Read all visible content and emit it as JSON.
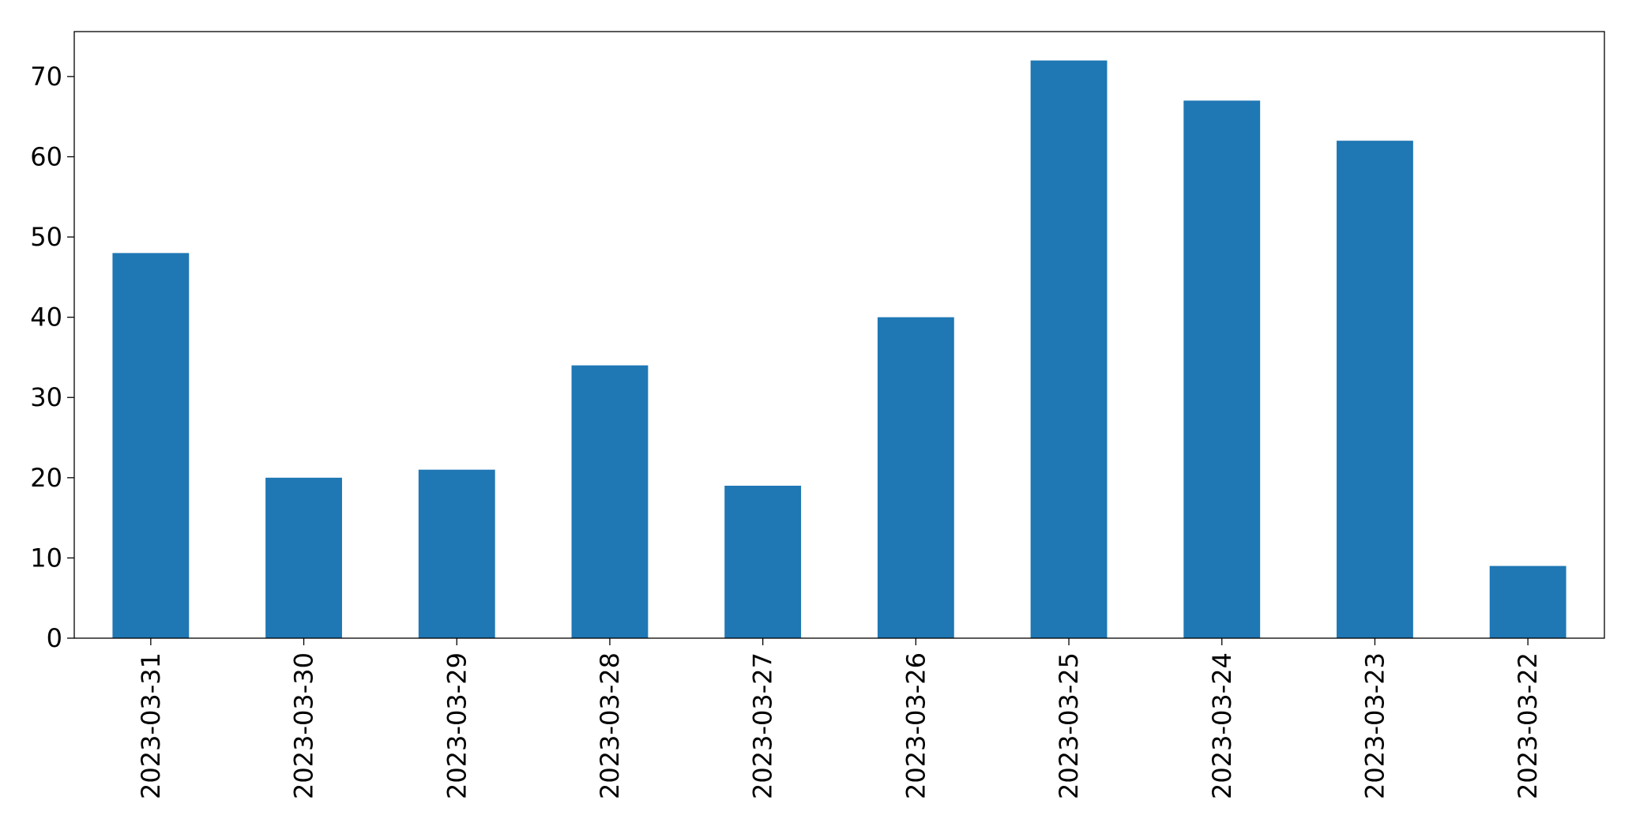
{
  "chart_data": {
    "type": "bar",
    "categories": [
      "2023-03-31",
      "2023-03-30",
      "2023-03-29",
      "2023-03-28",
      "2023-03-27",
      "2023-03-26",
      "2023-03-25",
      "2023-03-24",
      "2023-03-23",
      "2023-03-22"
    ],
    "values": [
      48,
      20,
      21,
      34,
      19,
      40,
      72,
      67,
      62,
      9
    ],
    "color": "#1f77b4",
    "ylim": [
      0,
      75.6
    ],
    "yticks": [
      0,
      10,
      20,
      30,
      40,
      50,
      60,
      70
    ],
    "grid": false
  }
}
